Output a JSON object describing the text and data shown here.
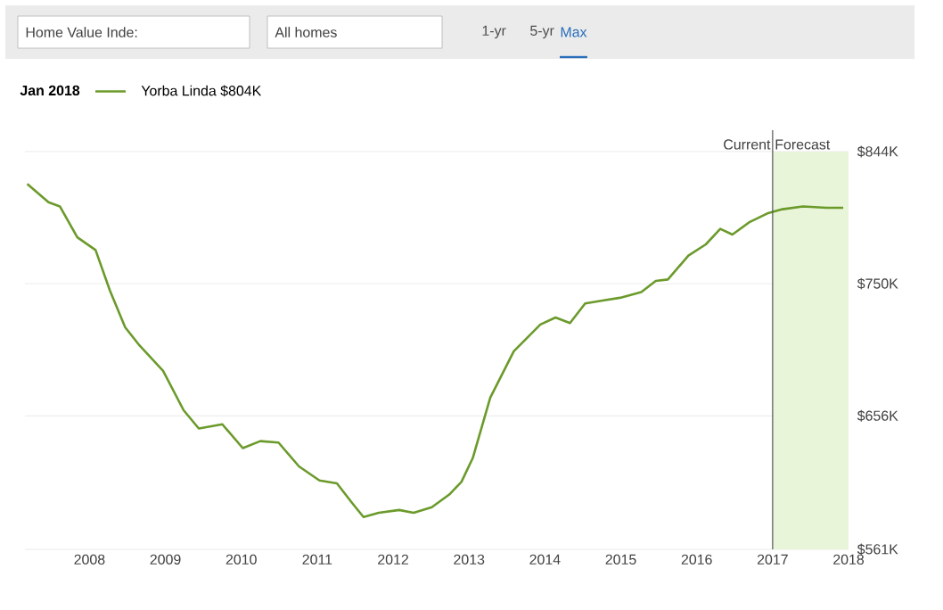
{
  "chart_data": {
    "type": "line",
    "legend_title": "Jan 2018",
    "annotations": [
      "Home Value Inde:",
      "All homes",
      "1-yr",
      "5-yr",
      "Max"
    ],
    "x": [
      2007.18,
      2007.46,
      2007.61,
      2007.84,
      2008.08,
      2008.27,
      2008.47,
      2008.66,
      2008.97,
      2009.24,
      2009.44,
      2009.75,
      2010.02,
      2010.25,
      2010.49,
      2010.76,
      2011.03,
      2011.26,
      2011.46,
      2011.61,
      2011.81,
      2012.08,
      2012.27,
      2012.51,
      2012.74,
      2012.9,
      2013.05,
      2013.28,
      2013.59,
      2013.94,
      2014.14,
      2014.33,
      2014.53,
      2014.76,
      2014.99,
      2015.27,
      2015.46,
      2015.62,
      2015.89,
      2016.12,
      2016.31,
      2016.47,
      2016.7,
      2016.93,
      2017.13,
      2017.4,
      2017.71,
      2017.93
    ],
    "series": [
      {
        "name": "Yorba Linda $804K",
        "color": "#6b9a2b",
        "values": [
          821,
          808,
          805,
          783,
          774,
          745,
          719,
          706,
          688,
          660,
          647,
          650,
          633,
          638,
          637,
          620,
          610,
          608,
          594,
          584,
          587,
          589,
          587,
          591,
          600,
          609,
          626,
          669,
          702,
          721,
          726,
          722,
          736,
          738,
          740,
          744,
          752,
          753,
          770,
          778,
          789,
          785,
          794,
          800,
          803,
          805,
          804,
          804
        ]
      }
    ],
    "xlim": [
      2007.15,
      2018.0
    ],
    "xticks": [
      2008,
      2009,
      2010,
      2011,
      2012,
      2013,
      2014,
      2015,
      2016,
      2017,
      2018
    ],
    "ylim": [
      561,
      844
    ],
    "yticks": [
      {
        "value": 561,
        "label": "$561K"
      },
      {
        "value": 656,
        "label": "$656K"
      },
      {
        "value": 750,
        "label": "$750K"
      },
      {
        "value": 844,
        "label": "$844K"
      }
    ],
    "ref_lines": [
      {
        "axis": "x",
        "value": 2017,
        "label": "Current",
        "color": "#555555"
      }
    ],
    "bands": [
      {
        "axis": "x",
        "from": 2017,
        "to": 2018,
        "label": "Forecast",
        "color": "#e9f5d9"
      }
    ],
    "grid": "y",
    "legend": "top left",
    "line_style": "solid",
    "marker": "none"
  }
}
